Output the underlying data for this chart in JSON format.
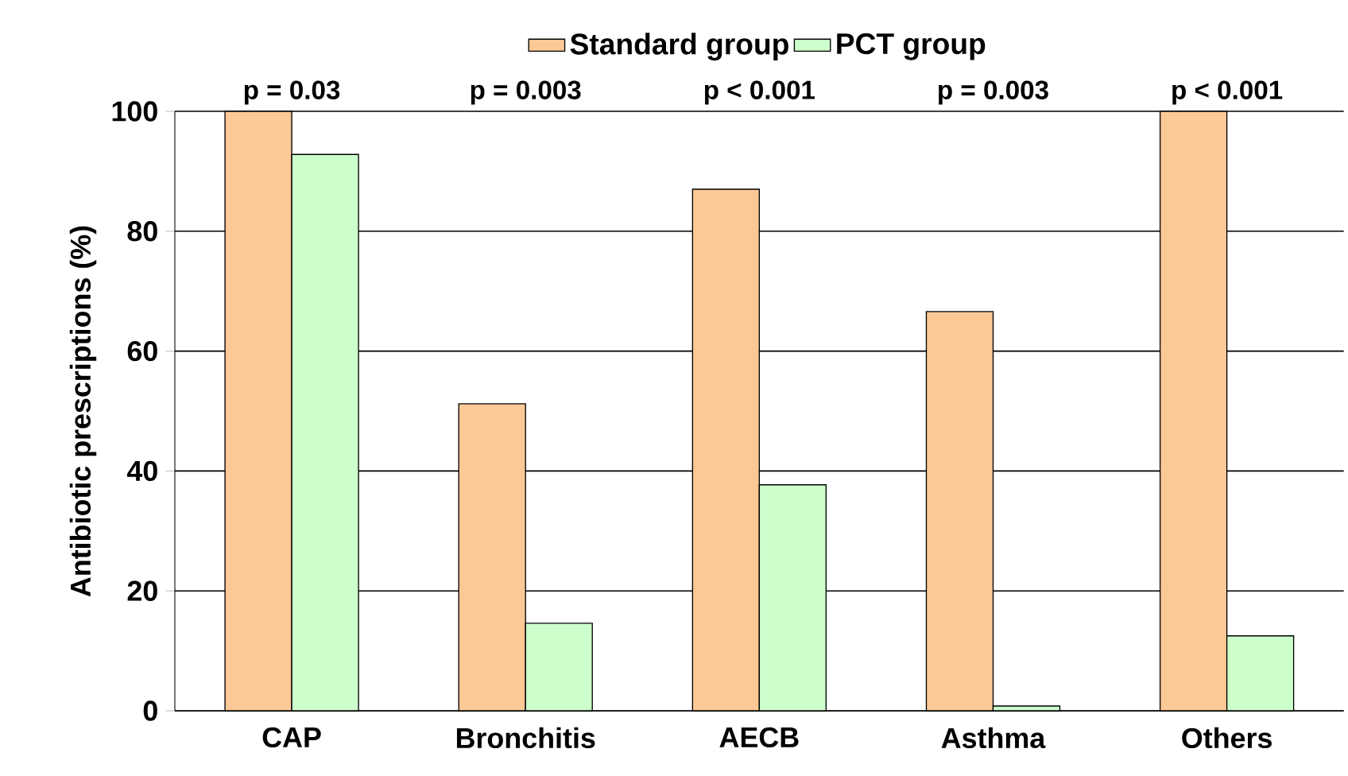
{
  "chart_data": {
    "type": "bar",
    "ylabel": "Antibiotic prescriptions (%)",
    "categories": [
      "CAP",
      "Bronchitis",
      "AECB",
      "Asthma",
      "Others"
    ],
    "series": [
      {
        "name": "Standard group",
        "color": "#fcc896",
        "values": [
          100,
          51.2,
          87,
          66.6,
          100
        ]
      },
      {
        "name": "PCT group",
        "color": "#ccffcc",
        "values": [
          92.8,
          14.6,
          37.7,
          0.8,
          12.5
        ]
      }
    ],
    "ylim": [
      0,
      100
    ],
    "yticks": [
      0,
      20,
      40,
      60,
      80,
      100
    ],
    "grid": "y",
    "legend": "top",
    "annotations": [
      "p = 0.03",
      "p = 0.003",
      "p < 0.001",
      "p = 0.003",
      "p < 0.001"
    ]
  }
}
